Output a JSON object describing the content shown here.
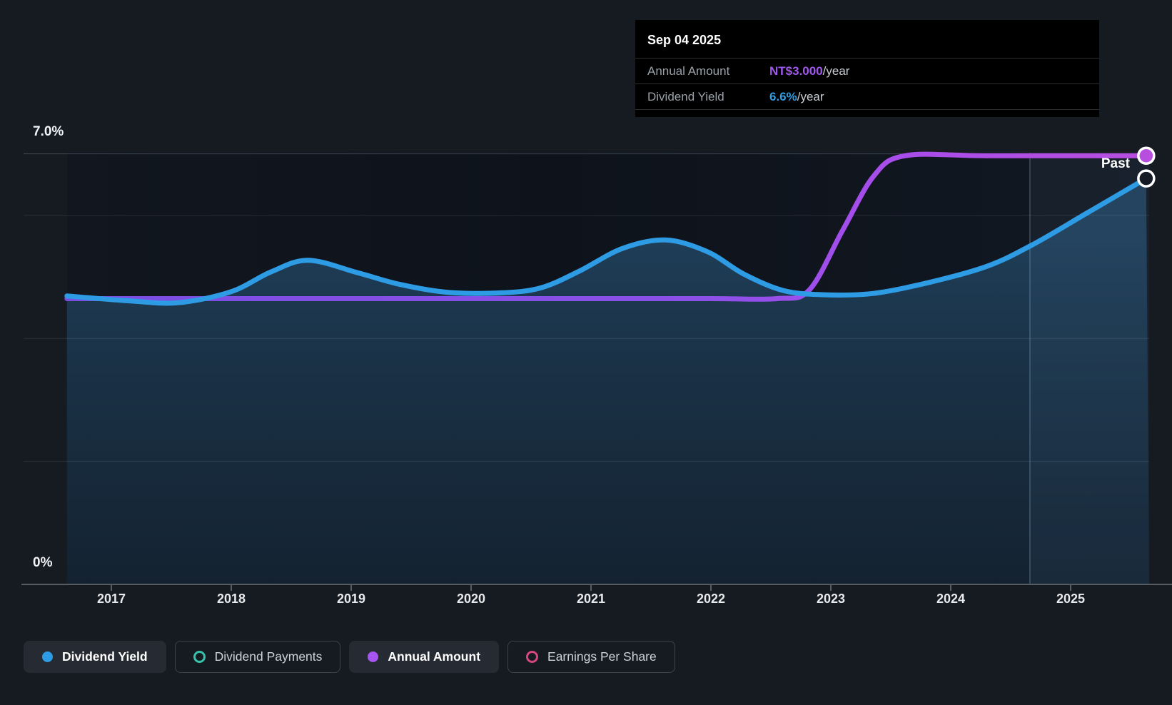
{
  "tooltip": {
    "date": "Sep 04 2025",
    "rows": [
      {
        "label": "Annual Amount",
        "value": "NT$3.000",
        "suffix": "/year",
        "color": "#a158ef"
      },
      {
        "label": "Dividend Yield",
        "value": "6.6%",
        "suffix": "/year",
        "color": "#2f9ce0"
      }
    ]
  },
  "y_axis": {
    "top_label": "7.0%",
    "bottom_label": "0%"
  },
  "past_label": "Past",
  "legend": [
    {
      "label": "Dividend Yield",
      "marker": "filled",
      "color": "#2e9be5",
      "active": true
    },
    {
      "label": "Dividend Payments",
      "marker": "outline",
      "color": "#36c2ab",
      "active": false
    },
    {
      "label": "Annual Amount",
      "marker": "filled",
      "color": "#a854f0",
      "active": true
    },
    {
      "label": "Earnings Per Share",
      "marker": "outline",
      "color": "#d6477f",
      "active": false
    }
  ],
  "chart_data": {
    "type": "area",
    "title": "Dividend history chart",
    "x_axis": {
      "ticks": [
        2017,
        2018,
        2019,
        2020,
        2021,
        2022,
        2023,
        2024,
        2025
      ]
    },
    "y_axis": {
      "min_percent": 0,
      "max_percent": 7.0,
      "labeled_gridlines": [
        "7.0%",
        "0%"
      ],
      "gridlines_percent": [
        7.0,
        6.0,
        4.0,
        2.0
      ]
    },
    "amount_to_percent_factor": 2.3233,
    "past_divider_year": 2024.66,
    "legend_position": "bottom",
    "series": [
      {
        "name": "Dividend Yield",
        "unit": "%",
        "color": "#2e9be5",
        "style": "area",
        "points": [
          [
            2016.63,
            4.69
          ],
          [
            2017.15,
            4.61
          ],
          [
            2017.56,
            4.58
          ],
          [
            2018.0,
            4.76
          ],
          [
            2018.33,
            5.08
          ],
          [
            2018.64,
            5.27
          ],
          [
            2019.05,
            5.07
          ],
          [
            2019.4,
            4.88
          ],
          [
            2019.8,
            4.75
          ],
          [
            2020.25,
            4.74
          ],
          [
            2020.58,
            4.82
          ],
          [
            2020.9,
            5.09
          ],
          [
            2021.26,
            5.46
          ],
          [
            2021.62,
            5.6
          ],
          [
            2021.97,
            5.41
          ],
          [
            2022.27,
            5.05
          ],
          [
            2022.6,
            4.78
          ],
          [
            2022.93,
            4.71
          ],
          [
            2023.35,
            4.73
          ],
          [
            2023.82,
            4.91
          ],
          [
            2024.3,
            5.17
          ],
          [
            2024.67,
            5.51
          ],
          [
            2025.13,
            6.03
          ],
          [
            2025.63,
            6.6
          ]
        ]
      },
      {
        "name": "Annual Amount",
        "unit": "NT$",
        "color": "#a854f0",
        "style": "line",
        "points": [
          [
            2016.63,
            2.0
          ],
          [
            2018.0,
            2.0
          ],
          [
            2019.5,
            2.0
          ],
          [
            2021.0,
            2.0
          ],
          [
            2022.0,
            2.0
          ],
          [
            2022.55,
            2.0
          ],
          [
            2022.82,
            2.06
          ],
          [
            2023.1,
            2.48
          ],
          [
            2023.36,
            2.86
          ],
          [
            2023.62,
            3.0
          ],
          [
            2024.3,
            3.0
          ],
          [
            2025.63,
            3.0
          ]
        ]
      }
    ]
  }
}
